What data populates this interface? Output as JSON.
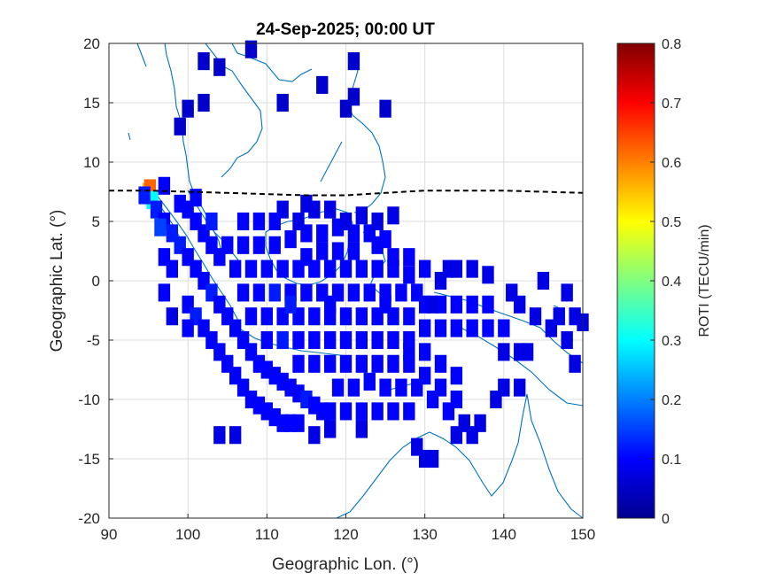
{
  "chart_data": {
    "type": "heatmap",
    "title": "24-Sep-2025; 00:00 UT",
    "xlabel": "Geographic Lon. (°)",
    "ylabel": "Geographic Lat. (°)",
    "xlim": [
      90,
      150
    ],
    "ylim": [
      -20,
      20
    ],
    "xticks": [
      "90",
      "100",
      "110",
      "120",
      "130",
      "140",
      "150"
    ],
    "yticks": [
      "20",
      "15",
      "10",
      "5",
      "0",
      "-5",
      "-10",
      "-15",
      "-20"
    ],
    "grid": true,
    "colorbar": {
      "label": "ROTI (TECU/min)",
      "range": [
        0,
        0.8
      ],
      "ticks": [
        "0",
        "0.1",
        "0.2",
        "0.3",
        "0.4",
        "0.5",
        "0.6",
        "0.7",
        "0.8"
      ],
      "colormap": "jet"
    },
    "magnetic_equator": [
      [
        90,
        7.6
      ],
      [
        95,
        7.6
      ],
      [
        100,
        7.5
      ],
      [
        105,
        7.4
      ],
      [
        110,
        7.3
      ],
      [
        115,
        7.2
      ],
      [
        120,
        7.2
      ],
      [
        125,
        7.4
      ],
      [
        130,
        7.6
      ],
      [
        135,
        7.6
      ],
      [
        140,
        7.6
      ],
      [
        145,
        7.5
      ],
      [
        150,
        7.4
      ]
    ],
    "points": [
      [
        95,
        7.5,
        0.55
      ],
      [
        95.2,
        7.8,
        0.62
      ],
      [
        95.5,
        6.8,
        0.3
      ],
      [
        94.5,
        7.2,
        0.12
      ],
      [
        96,
        6,
        0.12
      ],
      [
        97,
        5,
        0.1
      ],
      [
        98,
        4,
        0.12
      ],
      [
        96.5,
        4.5,
        0.15
      ],
      [
        99,
        6.5,
        0.1
      ],
      [
        100,
        6,
        0.1
      ],
      [
        101,
        5,
        0.1
      ],
      [
        102,
        4,
        0.1
      ],
      [
        103,
        3,
        0.1
      ],
      [
        104,
        2,
        0.1
      ],
      [
        99,
        3,
        0.12
      ],
      [
        100,
        2,
        0.1
      ],
      [
        101,
        1,
        0.1
      ],
      [
        102,
        0,
        0.1
      ],
      [
        103,
        -1,
        0.12
      ],
      [
        104,
        -2,
        0.1
      ],
      [
        105,
        -3,
        0.1
      ],
      [
        106,
        -4,
        0.1
      ],
      [
        107,
        -5,
        0.1
      ],
      [
        108,
        -6,
        0.1
      ],
      [
        109,
        -7,
        0.1
      ],
      [
        110,
        -7.5,
        0.1
      ],
      [
        111,
        -8,
        0.1
      ],
      [
        112,
        -8.5,
        0.1
      ],
      [
        113,
        -9,
        0.1
      ],
      [
        114,
        -9.5,
        0.1
      ],
      [
        115,
        -10,
        0.12
      ],
      [
        116,
        -10.5,
        0.1
      ],
      [
        117,
        -11,
        0.1
      ],
      [
        118,
        -11,
        0.1
      ],
      [
        100,
        -2,
        0.1
      ],
      [
        101,
        -3,
        0.12
      ],
      [
        102,
        -4,
        0.1
      ],
      [
        103,
        -5,
        0.1
      ],
      [
        104,
        -6,
        0.1
      ],
      [
        105,
        -7,
        0.1
      ],
      [
        106,
        -8,
        0.1
      ],
      [
        107,
        -9,
        0.1
      ],
      [
        108,
        -10,
        0.1
      ],
      [
        109,
        -10.5,
        0.1
      ],
      [
        110,
        -11,
        0.1
      ],
      [
        111,
        -11.5,
        0.1
      ],
      [
        112,
        -12,
        0.1
      ],
      [
        113,
        -12,
        0.1
      ],
      [
        114,
        -12,
        0.1
      ],
      [
        105,
        3,
        0.1
      ],
      [
        107,
        3,
        0.1
      ],
      [
        109,
        3,
        0.1
      ],
      [
        111,
        3,
        0.1
      ],
      [
        113,
        3.5,
        0.1
      ],
      [
        115,
        4,
        0.1
      ],
      [
        117,
        4,
        0.1
      ],
      [
        119,
        4.5,
        0.1
      ],
      [
        121,
        4,
        0.1
      ],
      [
        123,
        4,
        0.1
      ],
      [
        125,
        3.5,
        0.1
      ],
      [
        106,
        1,
        0.1
      ],
      [
        108,
        1,
        0.1
      ],
      [
        110,
        1,
        0.1
      ],
      [
        112,
        1,
        0.1
      ],
      [
        114,
        1,
        0.1
      ],
      [
        116,
        1,
        0.1
      ],
      [
        118,
        1,
        0.1
      ],
      [
        120,
        1,
        0.1
      ],
      [
        122,
        1,
        0.1
      ],
      [
        124,
        1,
        0.1
      ],
      [
        126,
        1,
        0.1
      ],
      [
        128,
        0.5,
        0.1
      ],
      [
        107,
        -1,
        0.1
      ],
      [
        109,
        -1,
        0.1
      ],
      [
        111,
        -1,
        0.12
      ],
      [
        113,
        -1,
        0.1
      ],
      [
        115,
        -1,
        0.1
      ],
      [
        117,
        -1,
        0.1
      ],
      [
        119,
        -1,
        0.1
      ],
      [
        121,
        -1,
        0.1
      ],
      [
        123,
        -1,
        0.1
      ],
      [
        125,
        -1,
        0.1
      ],
      [
        127,
        -1,
        0.1
      ],
      [
        129,
        -1,
        0.1
      ],
      [
        108,
        -3,
        0.1
      ],
      [
        110,
        -3,
        0.1
      ],
      [
        112,
        -3,
        0.1
      ],
      [
        114,
        -3,
        0.1
      ],
      [
        116,
        -3,
        0.1
      ],
      [
        118,
        -3,
        0.1
      ],
      [
        120,
        -3,
        0.1
      ],
      [
        122,
        -3,
        0.1
      ],
      [
        124,
        -3,
        0.1
      ],
      [
        126,
        -3,
        0.1
      ],
      [
        128,
        -3,
        0.1
      ],
      [
        130,
        -2,
        0.1
      ],
      [
        132,
        -2,
        0.1
      ],
      [
        134,
        -2,
        0.1
      ],
      [
        136,
        -2,
        0.1
      ],
      [
        138,
        -2,
        0.1
      ],
      [
        110,
        -5,
        0.1
      ],
      [
        112,
        -5,
        0.12
      ],
      [
        114,
        -5,
        0.1
      ],
      [
        116,
        -5,
        0.1
      ],
      [
        118,
        -5,
        0.1
      ],
      [
        120,
        -5,
        0.1
      ],
      [
        122,
        -5,
        0.1
      ],
      [
        124,
        -5,
        0.1
      ],
      [
        126,
        -5,
        0.1
      ],
      [
        128,
        -5,
        0.1
      ],
      [
        130,
        -4,
        0.1
      ],
      [
        132,
        -4,
        0.1
      ],
      [
        134,
        -4,
        0.1
      ],
      [
        136,
        -4,
        0.1
      ],
      [
        138,
        -4,
        0.1
      ],
      [
        140,
        -4,
        0.1
      ],
      [
        114,
        -7,
        0.1
      ],
      [
        116,
        -7,
        0.1
      ],
      [
        118,
        -7,
        0.1
      ],
      [
        120,
        -7,
        0.1
      ],
      [
        122,
        -7,
        0.1
      ],
      [
        124,
        -7,
        0.1
      ],
      [
        126,
        -7,
        0.1
      ],
      [
        128,
        -7,
        0.1
      ],
      [
        130,
        -6,
        0.1
      ],
      [
        132,
        -7,
        0.1
      ],
      [
        134,
        -8,
        0.1
      ],
      [
        119,
        -9,
        0.1
      ],
      [
        121,
        -9,
        0.1
      ],
      [
        123,
        -8.5,
        0.1
      ],
      [
        125,
        -9,
        0.1
      ],
      [
        127,
        -9,
        0.1
      ],
      [
        129,
        -9,
        0.1
      ],
      [
        131,
        -10,
        0.1
      ],
      [
        133,
        -11,
        0.1
      ],
      [
        120,
        -11,
        0.1
      ],
      [
        122,
        -11,
        0.1
      ],
      [
        124,
        -11,
        0.1
      ],
      [
        126,
        -11,
        0.1
      ],
      [
        128,
        -11,
        0.1
      ],
      [
        104,
        -13,
        0.08
      ],
      [
        106,
        -13,
        0.08
      ],
      [
        116,
        -13,
        0.08
      ],
      [
        118,
        -12.5,
        0.08
      ],
      [
        122,
        -12.5,
        0.08
      ],
      [
        129,
        -14,
        0.08
      ],
      [
        130,
        -15,
        0.08
      ],
      [
        131,
        -15,
        0.08
      ],
      [
        134,
        -13,
        0.08
      ],
      [
        136,
        -13,
        0.08
      ],
      [
        137,
        -12,
        0.08
      ],
      [
        135,
        -12,
        0.08
      ],
      [
        139,
        -10,
        0.08
      ],
      [
        140,
        -9,
        0.08
      ],
      [
        142,
        -9,
        0.08
      ],
      [
        143,
        -6,
        0.08
      ],
      [
        142,
        -6,
        0.08
      ],
      [
        140,
        -6,
        0.08
      ],
      [
        144,
        -3,
        0.08
      ],
      [
        146,
        -4,
        0.08
      ],
      [
        147,
        -3,
        0.08
      ],
      [
        148,
        -5,
        0.08
      ],
      [
        149,
        -3,
        0.08
      ],
      [
        150,
        -3.5,
        0.08
      ],
      [
        149,
        -7,
        0.08
      ],
      [
        145,
        0,
        0.08
      ],
      [
        148,
        -1,
        0.08
      ],
      [
        142,
        -2,
        0.08
      ],
      [
        141,
        -1,
        0.08
      ],
      [
        138,
        0.5,
        0.08
      ],
      [
        136,
        1,
        0.08
      ],
      [
        134,
        1,
        0.08
      ],
      [
        132,
        0,
        0.08
      ],
      [
        131,
        -2,
        0.08
      ],
      [
        133,
        1,
        0.08
      ],
      [
        99,
        13,
        0.06
      ],
      [
        100,
        14.5,
        0.06
      ],
      [
        102,
        15,
        0.06
      ],
      [
        102,
        18.5,
        0.06
      ],
      [
        104,
        18,
        0.06
      ],
      [
        108,
        19.5,
        0.06
      ],
      [
        112,
        15,
        0.06
      ],
      [
        117,
        16.5,
        0.06
      ],
      [
        120,
        14.5,
        0.06
      ],
      [
        121,
        15.5,
        0.06
      ],
      [
        121,
        18.5,
        0.06
      ],
      [
        125,
        14.5,
        0.06
      ],
      [
        112,
        6,
        0.08
      ],
      [
        114,
        5,
        0.08
      ],
      [
        116,
        6,
        0.08
      ],
      [
        118,
        6,
        0.08
      ],
      [
        120,
        5,
        0.08
      ],
      [
        122,
        5.5,
        0.08
      ],
      [
        124,
        5,
        0.08
      ],
      [
        126,
        5.5,
        0.08
      ],
      [
        115,
        6.5,
        0.08
      ],
      [
        124,
        3,
        0.1
      ],
      [
        126,
        2,
        0.1
      ],
      [
        128,
        2,
        0.1
      ],
      [
        130,
        1,
        0.1
      ],
      [
        97,
        -1,
        0.1
      ],
      [
        98,
        -3,
        0.08
      ],
      [
        100,
        -4,
        0.1
      ],
      [
        98,
        1,
        0.1
      ],
      [
        97,
        2,
        0.1
      ],
      [
        115,
        2,
        0.1
      ],
      [
        117,
        2.5,
        0.1
      ],
      [
        119,
        2.5,
        0.1
      ],
      [
        121,
        2.5,
        0.1
      ],
      [
        113,
        -2,
        0.12
      ],
      [
        118,
        -2,
        0.1
      ],
      [
        125,
        -2,
        0.1
      ],
      [
        128,
        -6,
        0.1
      ],
      [
        130,
        -8,
        0.1
      ],
      [
        132,
        -9,
        0.1
      ],
      [
        134,
        -10,
        0.1
      ],
      [
        107,
        5,
        0.1
      ],
      [
        109,
        5,
        0.1
      ],
      [
        111,
        5,
        0.1
      ],
      [
        103,
        5,
        0.12
      ],
      [
        101,
        7,
        0.1
      ],
      [
        97,
        8,
        0.1
      ]
    ]
  }
}
